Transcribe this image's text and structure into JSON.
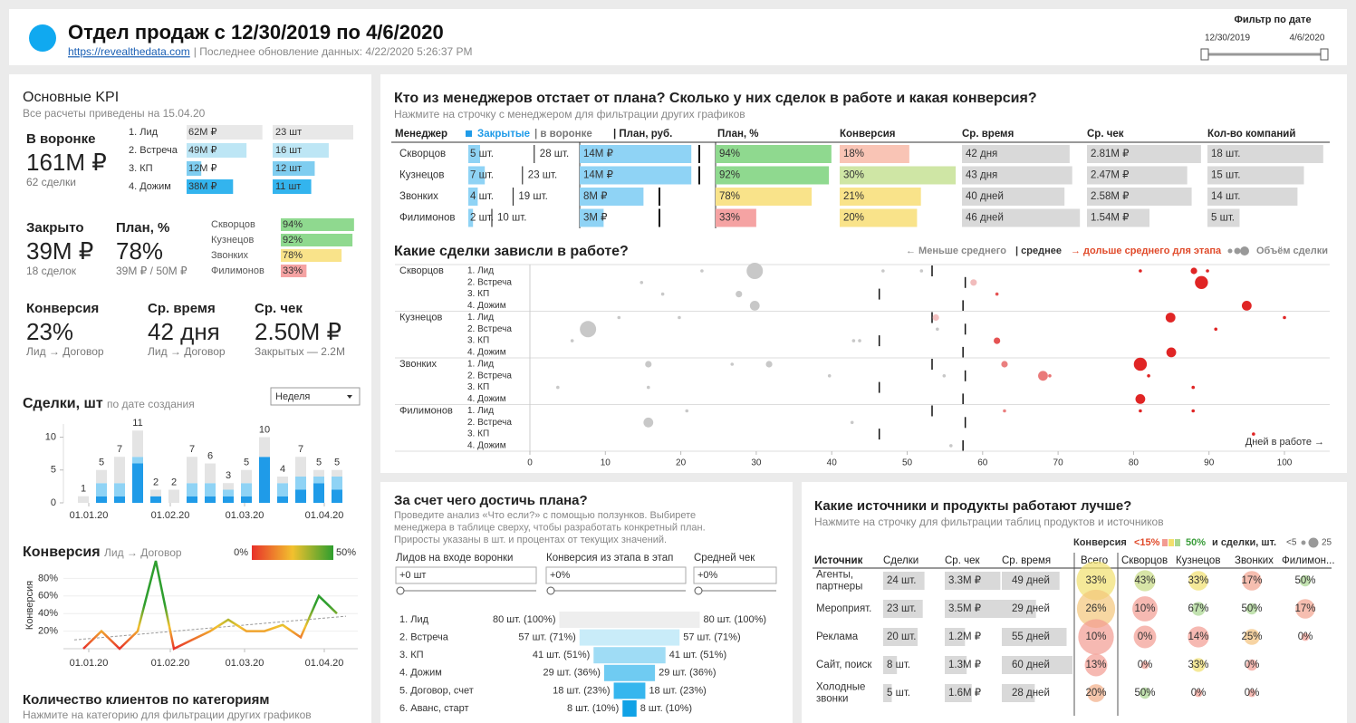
{
  "header": {
    "title": "Отдел продаж с 12/30/2019 по 4/6/2020",
    "link": "https://revealthedata.com",
    "updated": "| Последнее обновление данных: 4/22/2020 5:26:37 PM",
    "filter_title": "Фильтр по дате",
    "filter_start": "12/30/2019",
    "filter_end": "4/6/2020"
  },
  "kpi": {
    "title": "Основные KPI",
    "subtitle": "Все расчеты приведены на 15.04.20",
    "funnel": {
      "label": "В воронке",
      "value": "161M ₽",
      "sub": "62 сделки",
      "stages": [
        "1. Лид",
        "2. Встреча",
        "3. КП",
        "4. Дожим"
      ],
      "amounts": [
        62,
        49,
        12,
        38
      ],
      "amount_labels": [
        "62M ₽",
        "49M ₽",
        "12M ₽",
        "38M ₽"
      ],
      "counts": [
        23,
        16,
        12,
        11
      ],
      "count_labels": [
        "23 шт",
        "16 шт",
        "12 шт",
        "11 шт"
      ]
    },
    "closed": {
      "label": "Закрыто",
      "value": "39M ₽",
      "sub": "18 сделок"
    },
    "plan": {
      "label": "План, %",
      "value": "78%",
      "sub": "39M ₽ / 50M ₽",
      "managers": [
        "Скворцов",
        "Кузнецов",
        "Звонких",
        "Филимонов"
      ],
      "values": [
        94,
        92,
        78,
        33
      ],
      "value_labels": [
        "94%",
        "92%",
        "78%",
        "33%"
      ]
    },
    "conversion": {
      "label": "Конверсия",
      "value": "23%",
      "sub": "Лид → Договор"
    },
    "avg_time": {
      "label": "Ср. время",
      "value": "42 дня",
      "sub": "Лид → Договор"
    },
    "avg_check": {
      "label": "Ср. чек",
      "value": "2.50M ₽",
      "sub": "Закрытых — 2.2M"
    },
    "clients": {
      "title": "Количество клиентов по категориям",
      "subtitle": "Нажмите на категорию для фильтрации других графиков"
    }
  },
  "chart_data": [
    {
      "type": "bar",
      "title": "Сделки, шт",
      "subtitle": "по дате создания",
      "dropdown": "Неделя",
      "xlim": [
        -0.5,
        14.5
      ],
      "xticks": [
        {
          "value": 0.3,
          "label": "01.01.20"
        },
        {
          "value": 4.8,
          "label": "01.02.20"
        },
        {
          "value": 8.9,
          "label": "01.03.20"
        },
        {
          "value": 13.3,
          "label": "01.04.20"
        }
      ],
      "ylim": [
        0,
        12
      ],
      "yticks": [
        0,
        5,
        10
      ],
      "series": [
        {
          "color": "#1f9be8",
          "values": [
            0,
            1,
            1,
            6,
            1,
            0,
            1,
            1,
            1,
            1,
            7,
            1,
            2,
            3,
            2
          ]
        },
        {
          "color": "#8fd3f5",
          "values": [
            0,
            2,
            2,
            1,
            0,
            0,
            2,
            2,
            1,
            2,
            0,
            2,
            2,
            1,
            2
          ]
        },
        {
          "color": "#e4e4e4",
          "values": [
            1,
            2,
            4,
            4,
            1,
            2,
            4,
            3,
            1,
            2,
            3,
            1,
            3,
            1,
            1
          ]
        }
      ],
      "totals": [
        1,
        5,
        7,
        11,
        2,
        2,
        7,
        6,
        3,
        5,
        10,
        4,
        7,
        5,
        5
      ]
    },
    {
      "type": "line",
      "title": "Конверсия",
      "subtitle": "Лид → Договор",
      "ylabel": "Конверсия",
      "color_scale": [
        {
          "value": 0,
          "label": "0%"
        },
        {
          "value": 50,
          "label": "50%"
        }
      ],
      "colors": [
        "#e8312a",
        "#f2c12e",
        "#2e9e2e"
      ],
      "xlim": [
        -0.5,
        14.5
      ],
      "xticks": [
        {
          "value": 0.3,
          "label": "01.01.20"
        },
        {
          "value": 4.8,
          "label": "01.02.20"
        },
        {
          "value": 8.9,
          "label": "01.03.20"
        },
        {
          "value": 13.3,
          "label": "01.04.20"
        }
      ],
      "ylim": [
        0,
        100
      ],
      "yticks": [
        {
          "value": 20,
          "label": "20%"
        },
        {
          "value": 40,
          "label": "40%"
        },
        {
          "value": 60,
          "label": "60%"
        },
        {
          "value": 80,
          "label": "80%"
        }
      ],
      "values": [
        0,
        20,
        0,
        20,
        100,
        0,
        10,
        20,
        33,
        20,
        20,
        27,
        13,
        60,
        40
      ],
      "trend": [
        10,
        37
      ]
    },
    {
      "type": "scatter",
      "title": "Какие сделки зависли в работе?",
      "legend_less": "← Меньше среднего",
      "legend_avg": "| среднее",
      "legend_more": "→ дольше среднего для этапа",
      "legend_size": "Объём сделки",
      "managers": [
        "Скворцов",
        "Кузнецов",
        "Звонких",
        "Филимонов"
      ],
      "stages": [
        "1. Лид",
        "2. Встреча",
        "3. КП",
        "4. Дожим"
      ],
      "stage_averages": [
        53.3,
        57.7,
        46.3,
        57.4
      ],
      "xlim": [
        0,
        106
      ],
      "xticks": [
        0,
        10,
        20,
        30,
        40,
        50,
        60,
        70,
        80,
        90,
        100
      ],
      "xlabel": "Дней в работе →",
      "points": [
        {
          "manager": 0,
          "stage": 0,
          "days": 22.8,
          "size": 1
        },
        {
          "manager": 0,
          "stage": 0,
          "days": 29.8,
          "size": 5
        },
        {
          "manager": 0,
          "stage": 0,
          "days": 46.8,
          "size": 1
        },
        {
          "manager": 0,
          "stage": 0,
          "days": 51.9,
          "size": 1
        },
        {
          "manager": 0,
          "stage": 0,
          "days": 80.9,
          "size": 1
        },
        {
          "manager": 0,
          "stage": 0,
          "days": 88,
          "size": 2
        },
        {
          "manager": 0,
          "stage": 0,
          "days": 89.8,
          "size": 1
        },
        {
          "manager": 0,
          "stage": 1,
          "days": 14.8,
          "size": 1
        },
        {
          "manager": 0,
          "stage": 1,
          "days": 58.8,
          "size": 2
        },
        {
          "manager": 0,
          "stage": 1,
          "days": 89,
          "size": 4
        },
        {
          "manager": 0,
          "stage": 2,
          "days": 17.6,
          "size": 1
        },
        {
          "manager": 0,
          "stage": 2,
          "days": 27.7,
          "size": 2
        },
        {
          "manager": 0,
          "stage": 2,
          "days": 61.9,
          "size": 1
        },
        {
          "manager": 0,
          "stage": 3,
          "days": 29.8,
          "size": 3
        },
        {
          "manager": 0,
          "stage": 3,
          "days": 95,
          "size": 3
        },
        {
          "manager": 1,
          "stage": 0,
          "days": 11.8,
          "size": 1
        },
        {
          "manager": 1,
          "stage": 0,
          "days": 19.8,
          "size": 1
        },
        {
          "manager": 1,
          "stage": 0,
          "days": 53.8,
          "size": 2
        },
        {
          "manager": 1,
          "stage": 0,
          "days": 84.9,
          "size": 3
        },
        {
          "manager": 1,
          "stage": 0,
          "days": 100,
          "size": 1
        },
        {
          "manager": 1,
          "stage": 1,
          "days": 7.7,
          "size": 5
        },
        {
          "manager": 1,
          "stage": 1,
          "days": 54,
          "size": 1
        },
        {
          "manager": 1,
          "stage": 1,
          "days": 90.9,
          "size": 1
        },
        {
          "manager": 1,
          "stage": 2,
          "days": 5.6,
          "size": 1
        },
        {
          "manager": 1,
          "stage": 2,
          "days": 42.9,
          "size": 1
        },
        {
          "manager": 1,
          "stage": 2,
          "days": 43.7,
          "size": 1
        },
        {
          "manager": 1,
          "stage": 2,
          "days": 61.9,
          "size": 2
        },
        {
          "manager": 1,
          "stage": 3,
          "days": 85,
          "size": 3
        },
        {
          "manager": 2,
          "stage": 0,
          "days": 15.7,
          "size": 2
        },
        {
          "manager": 2,
          "stage": 0,
          "days": 26.8,
          "size": 1
        },
        {
          "manager": 2,
          "stage": 0,
          "days": 31.7,
          "size": 2
        },
        {
          "manager": 2,
          "stage": 0,
          "days": 62.9,
          "size": 2
        },
        {
          "manager": 2,
          "stage": 0,
          "days": 80.9,
          "size": 4
        },
        {
          "manager": 2,
          "stage": 1,
          "days": 39.7,
          "size": 1
        },
        {
          "manager": 2,
          "stage": 1,
          "days": 54.9,
          "size": 1
        },
        {
          "manager": 2,
          "stage": 1,
          "days": 68,
          "size": 3
        },
        {
          "manager": 2,
          "stage": 1,
          "days": 68.9,
          "size": 1
        },
        {
          "manager": 2,
          "stage": 1,
          "days": 82,
          "size": 1
        },
        {
          "manager": 2,
          "stage": 2,
          "days": 3.7,
          "size": 1
        },
        {
          "manager": 2,
          "stage": 2,
          "days": 15.7,
          "size": 1
        },
        {
          "manager": 2,
          "stage": 2,
          "days": 87.9,
          "size": 1
        },
        {
          "manager": 2,
          "stage": 3,
          "days": 80.9,
          "size": 3
        },
        {
          "manager": 3,
          "stage": 0,
          "days": 20.8,
          "size": 1
        },
        {
          "manager": 3,
          "stage": 0,
          "days": 62.9,
          "size": 1
        },
        {
          "manager": 3,
          "stage": 0,
          "days": 80.9,
          "size": 1
        },
        {
          "manager": 3,
          "stage": 0,
          "days": 87.9,
          "size": 1
        },
        {
          "manager": 3,
          "stage": 1,
          "days": 15.7,
          "size": 3
        },
        {
          "manager": 3,
          "stage": 1,
          "days": 42.7,
          "size": 1
        },
        {
          "manager": 3,
          "stage": 2,
          "days": 95.9,
          "size": 1
        },
        {
          "manager": 3,
          "stage": 3,
          "days": 55.8,
          "size": 1
        }
      ]
    }
  ],
  "managers_table": {
    "title": "Кто из менеджеров отстает от плана? Сколько у них сделок в работе и какая конверсия?",
    "subtitle": "Нажмите на строчку с менеджером для фильтрации других графиков",
    "columns": [
      "Менеджер",
      "Закрытые",
      "| в воронке",
      "| План, руб.",
      "План, %",
      "Конверсия",
      "Ср. время",
      "Ср. чек",
      "Кол-во компаний"
    ],
    "managers": [
      "Скворцов",
      "Кузнецов",
      "Звонких",
      "Филимонов"
    ],
    "closed": [
      5,
      7,
      4,
      2
    ],
    "closed_labels": [
      "5 шт.",
      "7 шт.",
      "4 шт.",
      "2 шт."
    ],
    "funnel": [
      28,
      23,
      19,
      10
    ],
    "funnel_labels": [
      "28 шт.",
      "23 шт.",
      "19 шт.",
      "10 шт."
    ],
    "plan_rub": [
      14,
      14,
      8,
      3
    ],
    "plan_rub_labels": [
      "14M ₽",
      "14M ₽",
      "8M ₽",
      "3M ₽"
    ],
    "plan_targets": [
      15,
      15,
      10,
      10
    ],
    "plan_pct": [
      94,
      92,
      78,
      33
    ],
    "plan_pct_labels": [
      "94%",
      "92%",
      "78%",
      "33%"
    ],
    "conversion": [
      18,
      30,
      21,
      20
    ],
    "conversion_labels": [
      "18%",
      "30%",
      "21%",
      "20%"
    ],
    "avg_time": [
      42,
      43,
      40,
      46
    ],
    "avg_time_labels": [
      "42 дня",
      "43 дня",
      "40 дней",
      "46 дней"
    ],
    "avg_check": [
      2.81,
      2.47,
      2.58,
      1.54
    ],
    "avg_check_labels": [
      "2.81M ₽",
      "2.47M ₽",
      "2.58M ₽",
      "1.54M ₽"
    ],
    "companies": [
      18,
      15,
      14,
      5
    ],
    "companies_labels": [
      "18 шт.",
      "15 шт.",
      "14 шт.",
      "5 шт."
    ]
  },
  "what_if": {
    "title": "За счет чего достичь плана?",
    "description": [
      "Проведите анализ «Что если?» с помощью ползунков. Выбирете",
      "менеджера в таблице сверху, чтобы разработать конкретный план.",
      "Приросты указаны в шт. и процентах от текущих значений."
    ],
    "inputs": [
      {
        "label": "Лидов на входе воронки",
        "value": "+0 шт"
      },
      {
        "label": "Конверсия из этапа в этап",
        "value": "+0%"
      },
      {
        "label": "Средней чек",
        "value": "+0%"
      }
    ],
    "stages": [
      "1. Лид",
      "2. Встреча",
      "3. КП",
      "4. Дожим",
      "5. Договор, счет",
      "6. Аванс, старт"
    ],
    "values": [
      80,
      57,
      41,
      29,
      18,
      8
    ],
    "value_labels": [
      "80 шт. (100%)",
      "57 шт. (71%)",
      "41 шт. (51%)",
      "29 шт. (36%)",
      "18 шт. (23%)",
      "8 шт. (10%)"
    ]
  },
  "sources": {
    "title": "Какие источники и продукты работают лучше?",
    "subtitle": "Нажмите на строчку для фильтрации таблиц продуктов и источников",
    "legend_conversion": "Конверсия",
    "conv_legend": [
      {
        "value": 15,
        "label": "<15%"
      },
      {
        "value": 50,
        "label": "50%"
      }
    ],
    "legend_deals": "и сделки, шт.",
    "size_legend": [
      {
        "value": 5,
        "label": "<5"
      },
      {
        "value": 25,
        "label": "25"
      }
    ],
    "columns": [
      "Источник",
      "Сделки",
      "Ср. чек",
      "Ср. время",
      "Всего",
      "Скворцов",
      "Кузнецов",
      "Звонких",
      "Филимон..."
    ],
    "rows": [
      {
        "name": "Агенты, партнеры",
        "deals": 24,
        "deals_label": "24 шт.",
        "check": 3.3,
        "check_label": "3.3M ₽",
        "time": 49,
        "time_label": "49 дней",
        "conversion": [
          33,
          43,
          33,
          17,
          50
        ],
        "conversion_labels": [
          "33%",
          "43%",
          "33%",
          "17%",
          "50%"
        ],
        "counts": [
          7,
          6,
          6,
          2
        ]
      },
      {
        "name": "Мероприят.",
        "deals": 23,
        "deals_label": "23 шт.",
        "check": 3.5,
        "check_label": "3.5M ₽",
        "time": 29,
        "time_label": "29 дней",
        "conversion": [
          26,
          10,
          67,
          50,
          17
        ],
        "conversion_labels": [
          "26%",
          "10%",
          "67%",
          "50%",
          "17%"
        ],
        "counts": [
          10,
          3,
          2,
          6
        ]
      },
      {
        "name": "Реклама",
        "deals": 20,
        "deals_label": "20 шт.",
        "check": 1.2,
        "check_label": "1.2M ₽",
        "time": 55,
        "time_label": "55 дней",
        "conversion": [
          10,
          0,
          14,
          25,
          0
        ],
        "conversion_labels": [
          "10%",
          "0%",
          "14%",
          "25%",
          "0%"
        ],
        "counts": [
          8,
          7,
          4,
          1
        ]
      },
      {
        "name": "Сайт, поиск",
        "deals": 8,
        "deals_label": "8 шт.",
        "check": 1.3,
        "check_label": "1.3M ₽",
        "time": 60,
        "time_label": "60 дней",
        "conversion": [
          13,
          0,
          33,
          0,
          null
        ],
        "conversion_labels": [
          "13%",
          "0%",
          "33%",
          "0%",
          null
        ],
        "counts": [
          1,
          3,
          2,
          null
        ]
      },
      {
        "name": "Холодные звонки",
        "deals": 5,
        "deals_label": "5 шт.",
        "check": 1.6,
        "check_label": "1.6M ₽",
        "time": 28,
        "time_label": "28 дней",
        "conversion": [
          20,
          50,
          0,
          0,
          null
        ],
        "conversion_labels": [
          "20%",
          "50%",
          "0%",
          "0%",
          null
        ],
        "counts": [
          2,
          1,
          1,
          null
        ]
      }
    ]
  }
}
